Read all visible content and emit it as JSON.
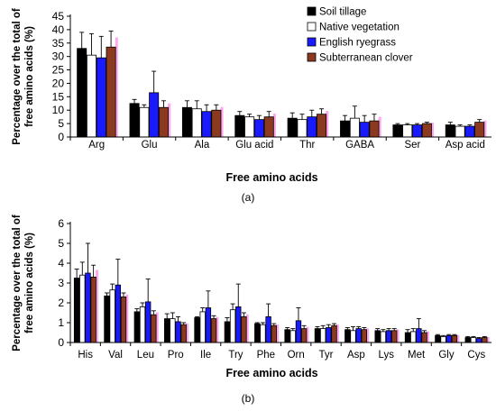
{
  "figure": {
    "caption_a": "(a)",
    "caption_b": "(b)"
  },
  "colors": {
    "soil_tillage": "#000000",
    "native_vegetation": "#ffffff",
    "english_ryegrass": "#1a1aff",
    "subterranean_clover": "#8b3a1f",
    "error_bar": "#000000",
    "highlight": "#ff00cc"
  },
  "chart_data": [
    {
      "type": "bar",
      "panel": "(a)",
      "xlabel": "Free amino acids",
      "ylabel": "Percentage over the total of free amino acids (%)",
      "ylim": [
        0,
        45
      ],
      "yticks": [
        0,
        5,
        10,
        15,
        20,
        25,
        30,
        35,
        40,
        45
      ],
      "grid": false,
      "legend_position": "top-right",
      "categories": [
        "Arg",
        "Glu",
        "Ala",
        "Glu acid",
        "Thr",
        "GABA",
        "Ser",
        "Asp acid"
      ],
      "series": [
        {
          "name": "Soil tillage",
          "color_key": "soil_tillage",
          "values": [
            33.0,
            12.5,
            11.0,
            8.0,
            7.0,
            6.0,
            4.5,
            4.5
          ],
          "errors": [
            6.0,
            1.5,
            2.5,
            1.5,
            2.0,
            2.0,
            0.5,
            1.0
          ]
        },
        {
          "name": "Native vegetation",
          "color_key": "native_vegetation",
          "values": [
            30.5,
            11.0,
            10.5,
            7.5,
            6.5,
            7.0,
            4.5,
            4.0
          ],
          "errors": [
            8.0,
            1.0,
            3.0,
            1.0,
            2.0,
            4.5,
            0.5,
            0.5
          ]
        },
        {
          "name": "English ryegrass",
          "color_key": "english_ryegrass",
          "values": [
            29.5,
            16.5,
            9.5,
            6.5,
            7.5,
            5.5,
            4.5,
            4.0
          ],
          "errors": [
            8.0,
            8.0,
            2.5,
            1.5,
            2.5,
            2.5,
            0.5,
            0.5
          ]
        },
        {
          "name": "Subterranean clover",
          "color_key": "subterranean_clover",
          "values": [
            33.5,
            11.0,
            10.0,
            7.5,
            8.5,
            6.0,
            5.0,
            5.5
          ],
          "errors": [
            6.0,
            2.5,
            2.0,
            2.0,
            2.0,
            2.5,
            0.5,
            1.0
          ]
        }
      ]
    },
    {
      "type": "bar",
      "panel": "(b)",
      "xlabel": "Free amino acids",
      "ylabel": "Percentage over the total of free amino acids (%)",
      "ylim": [
        0,
        6
      ],
      "yticks": [
        0,
        1,
        2,
        3,
        4,
        5,
        6
      ],
      "grid": false,
      "legend_position": "none",
      "categories": [
        "His",
        "Val",
        "Leu",
        "Pro",
        "Ile",
        "Try",
        "Phe",
        "Orn",
        "Tyr",
        "Asp",
        "Lys",
        "Met",
        "Gly",
        "Cys"
      ],
      "series": [
        {
          "name": "Soil tillage",
          "color_key": "soil_tillage",
          "values": [
            3.25,
            2.35,
            1.55,
            1.2,
            1.25,
            1.05,
            0.95,
            0.65,
            0.7,
            0.65,
            0.6,
            0.5,
            0.35,
            0.25
          ],
          "errors": [
            0.45,
            0.15,
            0.15,
            0.25,
            0.05,
            0.2,
            0.05,
            0.1,
            0.1,
            0.1,
            0.1,
            0.15,
            0.05,
            0.05
          ]
        },
        {
          "name": "Native vegetation",
          "color_key": "native_vegetation",
          "values": [
            3.4,
            2.65,
            1.8,
            1.2,
            1.55,
            1.65,
            0.9,
            0.6,
            0.7,
            0.6,
            0.55,
            0.55,
            0.3,
            0.25
          ],
          "errors": [
            0.65,
            0.3,
            0.2,
            0.3,
            0.2,
            0.3,
            0.1,
            0.1,
            0.15,
            0.2,
            0.1,
            0.15,
            0.05,
            0.05
          ]
        },
        {
          "name": "English ryegrass",
          "color_key": "english_ryegrass",
          "values": [
            3.5,
            2.9,
            2.05,
            1.05,
            1.75,
            1.8,
            1.3,
            1.1,
            0.75,
            0.7,
            0.6,
            0.7,
            0.35,
            0.2
          ],
          "errors": [
            1.5,
            1.3,
            1.15,
            0.25,
            0.85,
            1.15,
            0.65,
            0.65,
            0.15,
            0.1,
            0.1,
            0.5,
            0.05,
            0.05
          ]
        },
        {
          "name": "Subterranean clover",
          "color_key": "subterranean_clover",
          "values": [
            3.3,
            2.3,
            1.4,
            0.9,
            1.2,
            1.3,
            0.85,
            0.7,
            0.85,
            0.65,
            0.6,
            0.5,
            0.35,
            0.25
          ],
          "errors": [
            0.6,
            0.2,
            0.2,
            0.1,
            0.15,
            0.2,
            0.1,
            0.15,
            0.1,
            0.1,
            0.1,
            0.1,
            0.05,
            0.05
          ]
        }
      ]
    }
  ]
}
